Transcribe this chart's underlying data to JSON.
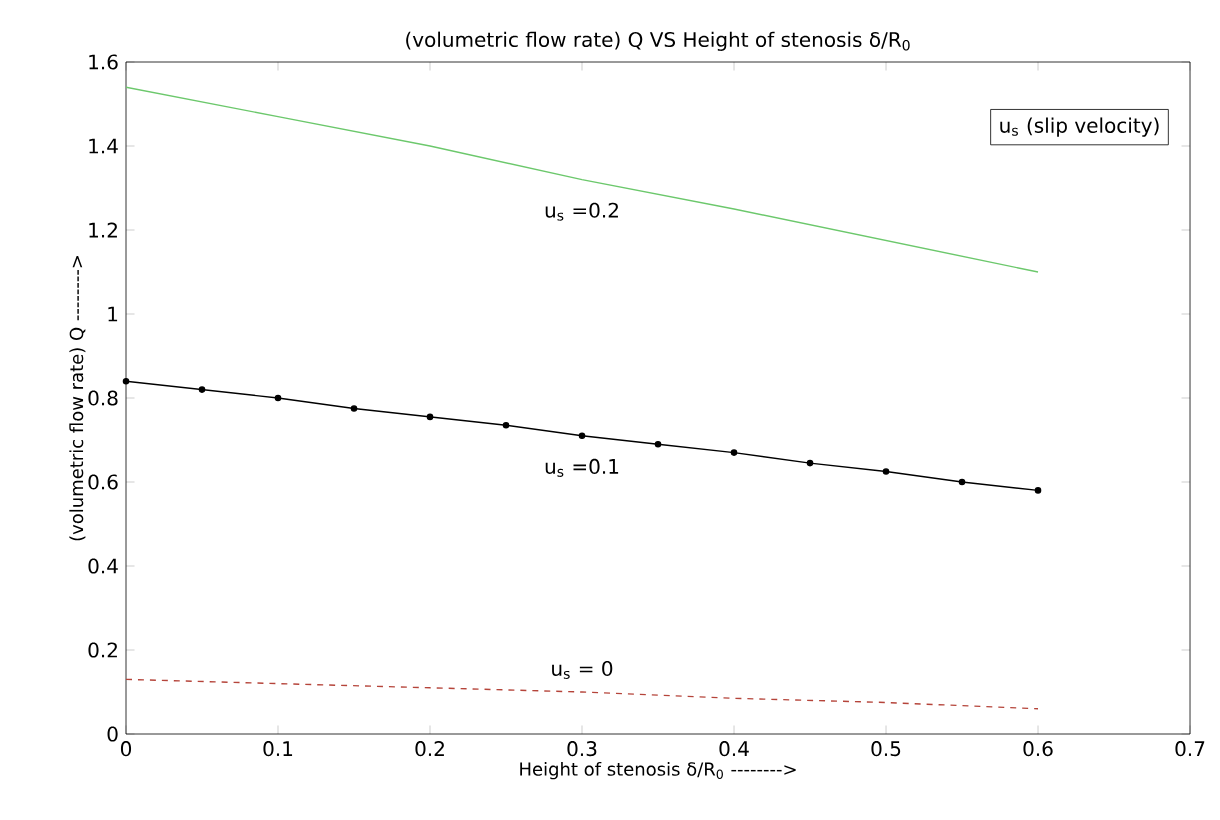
{
  "chart_data": {
    "type": "line",
    "title": "(volumetric flow rate) Q VS  Height of stenosis  δ/R$_{0}$",
    "xlabel": "Height of stenosis  δ/R$_{0}$ -------->",
    "ylabel": "(volumetric flow rate) Q -------->",
    "annotations": [
      "u$_{s}$  (slip velocity)"
    ],
    "xlim": [
      0,
      0.7
    ],
    "ylim": [
      0,
      1.6
    ],
    "xticks": [
      0,
      0.1,
      0.2,
      0.3,
      0.4,
      0.5,
      0.6,
      0.7
    ],
    "yticks": [
      0,
      0.2,
      0.4,
      0.6,
      0.8,
      1,
      1.2,
      1.4,
      1.6
    ],
    "grid": false,
    "legend": false,
    "series": [
      {
        "name": "u$_{s}$ =0.2",
        "color": "#6cc86c",
        "line_style": "solid",
        "marker": "none",
        "x": [
          0,
          0.1,
          0.2,
          0.3,
          0.4,
          0.5,
          0.6
        ],
        "values": [
          1.54,
          1.47,
          1.4,
          1.32,
          1.25,
          1.175,
          1.1
        ]
      },
      {
        "name": "u$_{s}$ =0.1",
        "color": "#000000",
        "line_style": "solid",
        "marker": "circle",
        "x": [
          0,
          0.05,
          0.1,
          0.15,
          0.2,
          0.25,
          0.3,
          0.35,
          0.4,
          0.45,
          0.5,
          0.55,
          0.6
        ],
        "values": [
          0.84,
          0.82,
          0.8,
          0.775,
          0.755,
          0.735,
          0.71,
          0.69,
          0.67,
          0.645,
          0.625,
          0.6,
          0.58
        ]
      },
      {
        "name": "u$_{s}$ = 0",
        "color": "#b5443a",
        "line_style": "dashed",
        "marker": "none",
        "x": [
          0,
          0.1,
          0.2,
          0.3,
          0.4,
          0.5,
          0.6
        ],
        "values": [
          0.13,
          0.12,
          0.11,
          0.1,
          0.085,
          0.075,
          0.06
        ]
      }
    ]
  }
}
